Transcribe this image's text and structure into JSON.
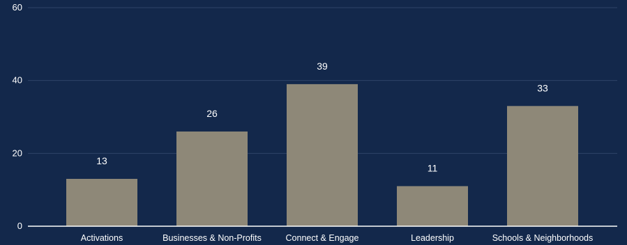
{
  "colors": {
    "background": "#13284b",
    "bar": "#8e8878",
    "gridline": "#2f4468",
    "axis_line": "#ffffff",
    "text": "#ffffff"
  },
  "chart_data": {
    "type": "bar",
    "categories": [
      "Activations",
      "Businesses & Non-Profits",
      "Connect & Engage",
      "Leadership",
      "Schools & Neighborhoods"
    ],
    "values": [
      13,
      26,
      39,
      11,
      33
    ],
    "data_labels": [
      "13",
      "26",
      "39",
      "11",
      "33"
    ],
    "ylim": [
      0,
      60
    ],
    "yticks": [
      0,
      20,
      40,
      60
    ],
    "ytick_labels": [
      "0",
      "20",
      "40",
      "60"
    ],
    "grid": true,
    "legend": "none",
    "title": "",
    "xlabel": "",
    "ylabel": ""
  }
}
